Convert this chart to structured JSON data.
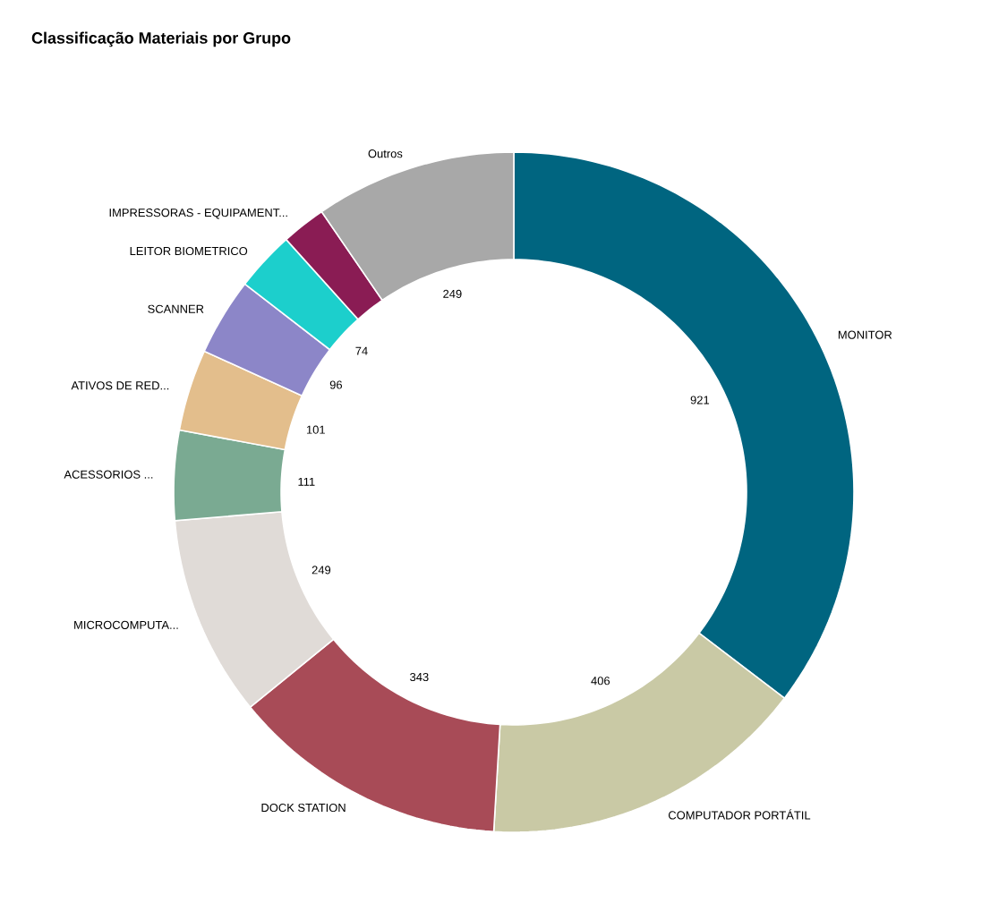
{
  "chart_data": {
    "type": "donut",
    "title": "Classificação Materiais por Grupo",
    "categories": [
      "MONITOR",
      "COMPUTADOR PORTÁTIL",
      "DOCK STATION",
      "MICROCOMPUTA...",
      "ACESSORIOS ...",
      "ATIVOS DE RED...",
      "SCANNER",
      "LEITOR BIOMETRICO",
      "IMPRESSORAS - EQUIPAMENT...",
      "Outros"
    ],
    "values": [
      921,
      406,
      343,
      249,
      111,
      101,
      96,
      74,
      55,
      249
    ],
    "value_labels": [
      "921",
      "406",
      "343",
      "249",
      "111",
      "101",
      "96",
      "74",
      null,
      "249"
    ],
    "colors": [
      "#006580",
      "#c9c9a5",
      "#a84b57",
      "#e0dbd7",
      "#7aaa92",
      "#e3be8c",
      "#8c86c8",
      "#1ccfcc",
      "#8a1c54",
      "#a8a8a8"
    ]
  }
}
